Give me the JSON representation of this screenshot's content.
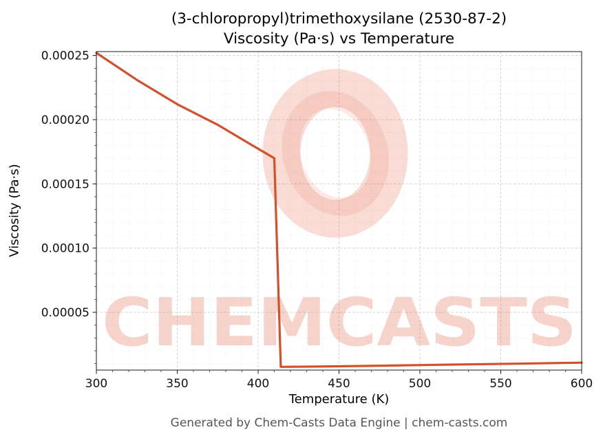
{
  "chart_data": {
    "type": "line",
    "title": "(3-chloropropyl)trimethoxysilane (2530-87-2)",
    "subtitle": "Viscosity (Pa·s) vs Temperature",
    "xlabel": "Temperature (K)",
    "ylabel": "Viscosity (Pa·s)",
    "xlim": [
      300,
      600
    ],
    "ylim": [
      5e-06,
      0.000253
    ],
    "x_ticks": [
      300,
      350,
      400,
      450,
      500,
      550,
      600
    ],
    "y_ticks": [
      5e-05,
      0.0001,
      0.00015,
      0.0002,
      0.00025
    ],
    "y_tick_labels": [
      "0.00005",
      "0.00010",
      "0.00015",
      "0.00020",
      "0.00025"
    ],
    "x_minor_step": 10,
    "y_minor_step": 1e-05,
    "grid": true,
    "legend": "none",
    "line_color": "#d2512a",
    "series": [
      {
        "name": "viscosity",
        "points": [
          [
            300,
            0.000252
          ],
          [
            325,
            0.000231
          ],
          [
            350,
            0.000212
          ],
          [
            375,
            0.000196
          ],
          [
            395,
            0.000181
          ],
          [
            410,
            0.00017
          ],
          [
            414,
            7.5e-06
          ],
          [
            440,
            7.8e-06
          ],
          [
            480,
            8.5e-06
          ],
          [
            520,
            9.3e-06
          ],
          [
            560,
            1e-05
          ],
          [
            600,
            1.08e-05
          ]
        ]
      }
    ]
  },
  "watermark": {
    "text": "CHEMCASTS",
    "color": "#e05230"
  },
  "footer": {
    "text": "Generated by Chem-Casts Data Engine | chem-casts.com"
  }
}
